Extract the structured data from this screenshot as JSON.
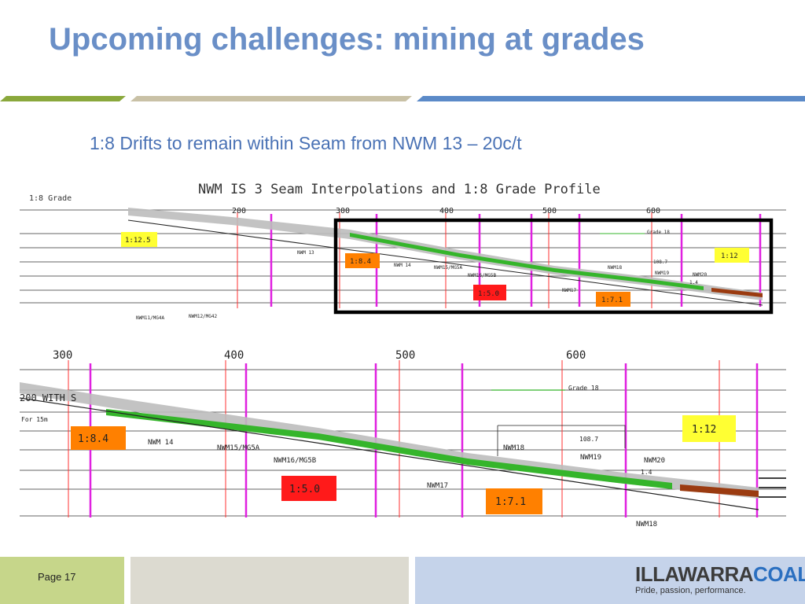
{
  "slide": {
    "title": "Upcoming challenges: mining at grades",
    "subtitle": "1:8 Drifts to remain within Seam from NWM 13 – 20c/t"
  },
  "top_profile": {
    "heading": "NWM IS 3   Seam Interpolations and 1:8 Grade Profile",
    "legend": "1:8 Grade",
    "chainages": [
      "200",
      "300",
      "400",
      "500",
      "600"
    ],
    "grade_labels": [
      "1:12.5",
      "1:8.4",
      "1:5.0",
      "1:7.1",
      "1:12"
    ],
    "roadway_labels": [
      "NWM 14",
      "NWM15/MG5A",
      "NWM16/MG5B",
      "NWM17",
      "NWM18",
      "NWM19",
      "NWM20",
      "NWM11/MG4A",
      "NWM12/MG42",
      "NWM 13"
    ],
    "notes": [
      "Grade 18",
      "108.7",
      "1.4"
    ]
  },
  "bottom_profile": {
    "chainages": [
      "300",
      "400",
      "500",
      "600"
    ],
    "grade_labels": [
      "1:8.4",
      "1:5.0",
      "1:7.1",
      "1:12"
    ],
    "roadway_labels": [
      "NWM 14",
      "NWM15/MG5A",
      "NWM16/MG5B",
      "NWM17",
      "NWM18",
      "NWM19",
      "NWM20",
      "NWM18"
    ],
    "notes": [
      "Grade 18",
      "108.7",
      "1.4",
      "For 15m"
    ],
    "margin_text": "200 WITH S"
  },
  "footer": {
    "page_label": "Page 17",
    "logo_main_a": "ILLAWARRA",
    "logo_main_b": "COAL",
    "logo_tagline": "Pride, passion, performance."
  },
  "colors": {
    "title": "#6a8fc7",
    "bar_green": "#8aa83c",
    "bar_tan": "#c9c1a6",
    "bar_blue": "#5b8ac8",
    "seam_green": "#35b52b",
    "chainage_magenta": "#e020e0",
    "grade_yellow": "#ffff33",
    "grade_orange": "#ff8000",
    "grade_red": "#ff1a1a"
  }
}
